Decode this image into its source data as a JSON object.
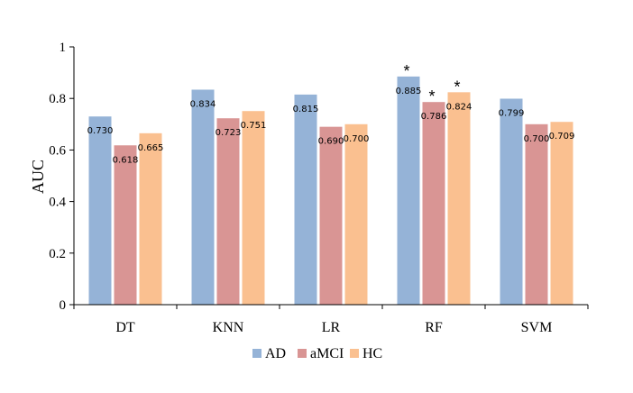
{
  "chart_data": {
    "type": "bar",
    "title": "",
    "xlabel": "",
    "ylabel": "AUC",
    "ylim": [
      0,
      1
    ],
    "yticks": [
      "0",
      "0.2",
      "0.4",
      "0.6",
      "0.8",
      "1"
    ],
    "categories": [
      "DT",
      "KNN",
      "LR",
      "RF",
      "SVM"
    ],
    "series": [
      {
        "name": "AD",
        "color": "#95b3d7",
        "values": [
          0.73,
          0.834,
          0.815,
          0.885,
          0.799
        ],
        "labels": [
          "0.730",
          "0.834",
          "0.815",
          "0.885",
          "0.799"
        ]
      },
      {
        "name": "aMCI",
        "color": "#d99594",
        "values": [
          0.618,
          0.723,
          0.69,
          0.786,
          0.7
        ],
        "labels": [
          "0.618",
          "0.723",
          "0.690",
          "0.786",
          "0.700"
        ]
      },
      {
        "name": "HC",
        "color": "#fac090",
        "values": [
          0.665,
          0.751,
          0.7,
          0.824,
          0.709
        ],
        "labels": [
          "0.665",
          "0.751",
          "0.700",
          "0.824",
          "0.709"
        ]
      }
    ],
    "significance_marker": "*",
    "significant_category": "RF",
    "legend_position": "bottom-center",
    "grid": false
  }
}
